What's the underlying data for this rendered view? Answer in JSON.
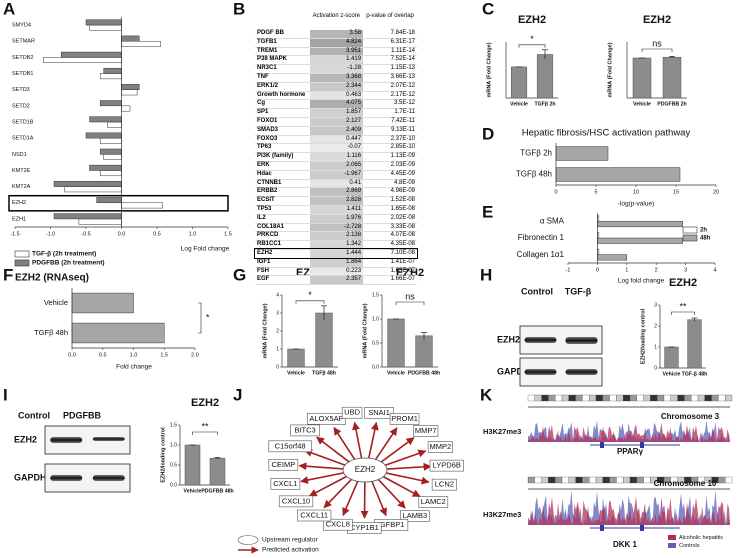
{
  "chart_data": [
    {
      "panel": "A",
      "type": "bar",
      "orientation": "horizontal",
      "categories": [
        "SMYD4",
        "SETMAR",
        "SETDB2",
        "SETDB1",
        "SETD3",
        "SETD2",
        "SETD1B",
        "SETD1A",
        "NSD1",
        "KMT2E",
        "KMT2A",
        "EZH2",
        "EZH1"
      ],
      "series": [
        {
          "name": "TGF-β (2h treatment)",
          "color": "#ffffff",
          "values": [
            -0.45,
            0.55,
            -1.1,
            -0.3,
            0.22,
            0.12,
            -0.2,
            -0.3,
            -0.25,
            -0.3,
            -0.8,
            0.58,
            -0.6
          ]
        },
        {
          "name": "PDGFBB (2h treatment)",
          "color": "#808080",
          "values": [
            -0.5,
            0.25,
            -0.85,
            -0.25,
            0.25,
            -0.3,
            -0.45,
            -0.5,
            -0.3,
            -0.45,
            -0.95,
            -0.35,
            -0.95
          ]
        }
      ],
      "xlim": [
        -1.5,
        1.5
      ],
      "xticks": [
        {
          "value": -1.5,
          "label": "-1.5"
        },
        {
          "value": -1,
          "label": "-1.0"
        },
        {
          "value": -0.5,
          "label": "-0.5"
        },
        {
          "value": 0,
          "label": "0.0"
        },
        {
          "value": 0.5,
          "label": "0.5"
        },
        {
          "value": 1,
          "label": "1.0"
        },
        {
          "value": 1.5,
          "label": "1.5"
        }
      ],
      "xlabel": "Log Fold change",
      "highlight": "EZH2"
    },
    {
      "panel": "C",
      "type": "bar",
      "title": "EZH2",
      "ylabel": "mRNA (Fold Change)",
      "categories": [
        "Vehicle",
        "TGFβ 2h"
      ],
      "values": [
        1.0,
        1.4
      ],
      "error": [
        0,
        0.15
      ],
      "color": "#8c8c8c",
      "ylim": [
        0,
        1.8
      ],
      "annotation": "*"
    },
    {
      "type": "bar",
      "title": "EZH2",
      "ylabel": "mRNA (Fold Change)",
      "categories": [
        "Vehicle",
        "PDGFBB 2h"
      ],
      "values": [
        1.0,
        1.02
      ],
      "error": [
        0,
        0.02
      ],
      "color": "#8c8c8c",
      "ylim": [
        0,
        1.4
      ],
      "annotation": "ns"
    },
    {
      "panel": "D",
      "type": "bar",
      "orientation": "horizontal",
      "title": "Hepatic fibrosis/HSC activation pathway",
      "categories": [
        "TGFβ 2h",
        "TGFβ 48h"
      ],
      "values": [
        6.5,
        15.5
      ],
      "color": "#a6a6a6",
      "xlim": [
        0,
        20
      ],
      "xticks": [
        0,
        5,
        10,
        15,
        20
      ],
      "xlabel": "-log(p-value)"
    },
    {
      "panel": "E",
      "type": "bar",
      "orientation": "horizontal",
      "categories": [
        "α SMA",
        "Fibronectin 1",
        "Collagen 1α1"
      ],
      "series": [
        {
          "name": "2h",
          "color": "#ffffff",
          "values": [
            0.05,
            0.05,
            0.05
          ]
        },
        {
          "name": "48h",
          "color": "#a6a6a6",
          "values": [
            2.9,
            2.9,
            1.0
          ]
        }
      ],
      "xlim": [
        -1,
        4
      ],
      "xticks": [
        -1,
        0,
        1,
        2,
        3,
        4
      ],
      "xlabel": "Log fold change"
    },
    {
      "panel": "F",
      "type": "bar",
      "orientation": "horizontal",
      "title": "EZH2 (RNAseq)",
      "categories": [
        "Vehicle",
        "TGFβ 48h"
      ],
      "values": [
        1.0,
        1.5
      ],
      "color": "#a6a6a6",
      "xlim": [
        0,
        2
      ],
      "xticks": [
        {
          "value": 0,
          "label": "0.0"
        },
        {
          "value": 0.5,
          "label": "0.5"
        },
        {
          "value": 1,
          "label": "1.0"
        },
        {
          "value": 1.5,
          "label": "1.5"
        },
        {
          "value": 2,
          "label": "2.0"
        }
      ],
      "xlabel": "Fold change",
      "annotation": "*"
    },
    {
      "panel": "G",
      "type": "bar",
      "title": "EZH2",
      "ylabel": "mRNA (Fold Change)",
      "categories": [
        "Vehicle",
        "TGFβ 48h"
      ],
      "values": [
        1.0,
        3.0
      ],
      "error": [
        0,
        0.4
      ],
      "color": "#8c8c8c",
      "ylim": [
        0,
        4
      ],
      "yticks": [
        0,
        1,
        2,
        3,
        4
      ],
      "annotation": "*"
    },
    {
      "type": "bar",
      "title": "EZH2",
      "ylabel": "mRNA (Fold Change)",
      "categories": [
        "Vehicle",
        "PDGFBB 48h"
      ],
      "values": [
        1.0,
        0.65
      ],
      "error": [
        0,
        0.07
      ],
      "color": "#8c8c8c",
      "ylim": [
        0,
        1.5
      ],
      "yticks": [
        {
          "value": 0,
          "label": "0.0"
        },
        {
          "value": 0.5,
          "label": "0.5"
        },
        {
          "value": 1,
          "label": "1.0"
        },
        {
          "value": 1.5,
          "label": "1.5"
        }
      ],
      "annotation": "ns"
    },
    {
      "type": "bar",
      "title": "EZH2",
      "ylabel": "EZH2/loading control",
      "categories": [
        "Vehicle",
        "TGF-β 48h"
      ],
      "values": [
        1.0,
        2.3
      ],
      "error": [
        0,
        0.08
      ],
      "color": "#8c8c8c",
      "ylim": [
        0,
        3
      ],
      "yticks": [
        0,
        1,
        2,
        3
      ],
      "annotation": "**"
    },
    {
      "type": "bar",
      "title": "EZH2",
      "ylabel": "EZH2/loading control",
      "categories": [
        "Vehicle",
        "PDGFBB 48h"
      ],
      "values": [
        1.0,
        0.67
      ],
      "error": [
        0,
        0.02
      ],
      "color": "#8c8c8c",
      "ylim": [
        0,
        1.5
      ],
      "yticks": [
        {
          "value": 0,
          "label": "0.0"
        },
        {
          "value": 0.5,
          "label": "0.5"
        },
        {
          "value": 1,
          "label": "1.0"
        },
        {
          "value": 1.5,
          "label": "1.5"
        }
      ],
      "annotation": "**"
    }
  ],
  "table": {
    "panel": "B",
    "columns": [
      "Activation z-score",
      "p-value of overlap"
    ],
    "highlight": "EZH2",
    "rows": [
      [
        "PDGF BB",
        "3.58",
        "7.84E-18"
      ],
      [
        "TGFB1",
        "4.824",
        "6.31E-17"
      ],
      [
        "TREM1",
        "3.951",
        "1.11E-14"
      ],
      [
        "P38 MAPK",
        "1.419",
        "7.52E-14"
      ],
      [
        "NR3C1",
        "-1.28",
        "1.15E-13"
      ],
      [
        "TNF",
        "3.368",
        "3.66E-13"
      ],
      [
        "ERK1/2",
        "2.344",
        "2.07E-12"
      ],
      [
        "Growth hormone",
        "0.463",
        "2.17E-12"
      ],
      [
        "Cg",
        "4.075",
        "3.5E-12"
      ],
      [
        "SP1",
        "1.857",
        "1.7E-11"
      ],
      [
        "FOXO1",
        "2.127",
        "7.42E-11"
      ],
      [
        "SMAD3",
        "2.409",
        "9.13E-11"
      ],
      [
        "FOXO3",
        "0.447",
        "2.37E-10"
      ],
      [
        "TP63",
        "-0.07",
        "2.85E-10"
      ],
      [
        "PI3K (family)",
        "1.116",
        "1.13E-09"
      ],
      [
        "ERK",
        "2.065",
        "2.03E-09"
      ],
      [
        "Hdac",
        "-1.967",
        "4.45E-09"
      ],
      [
        "CTNNB1",
        "0.41",
        "4.8E-09"
      ],
      [
        "ERBB2",
        "2.869",
        "4.96E-09"
      ],
      [
        "ECSIT",
        "2.828",
        "1.52E-08"
      ],
      [
        "TP53",
        "1.411",
        "1.65E-08"
      ],
      [
        "IL2",
        "1.976",
        "2.02E-08"
      ],
      [
        "COL18A1",
        "-2.728",
        "3.33E-08"
      ],
      [
        "PRKCD",
        "2.138",
        "4.07E-08"
      ],
      [
        "RB1CC1",
        "1.342",
        "4.35E-08"
      ],
      [
        "EZH2",
        "1.444",
        "7.10E-08"
      ],
      [
        "IGF1",
        "1.864",
        "1.41E-07"
      ],
      [
        "FSH",
        "0.223",
        "1.63E-07"
      ],
      [
        "EGF",
        "2.357",
        "1.66E-07"
      ]
    ]
  },
  "blots": [
    {
      "panel": "H",
      "lanes": [
        "Control",
        "TGF-β"
      ],
      "rows": [
        "EZH2",
        "GAPDH"
      ]
    },
    {
      "panel": "I",
      "lanes": [
        "Control",
        "PDGFBB"
      ],
      "rows": [
        "EZH2",
        "GAPDH"
      ]
    }
  ],
  "network": {
    "panel": "J",
    "center": "EZH2",
    "targets": [
      "ALOX5AP",
      "UBD",
      "SNAI1",
      "PROM1",
      "MMP7",
      "MMP2",
      "LYPD6B",
      "LCN2",
      "LAMC2",
      "LAMB3",
      "IGFBP1",
      "CYP1B1",
      "CXCL8",
      "CXCL11",
      "CXCL10",
      "CXCL1",
      "CEIMP",
      "C15orf48",
      "BITC3"
    ],
    "legend": [
      "Upstream regulator",
      "Predicted activation"
    ]
  },
  "tracks": {
    "panel": "K",
    "loci": [
      {
        "chromosome": "Chromosome 3",
        "mark": "H3K27me3",
        "gene": "PPARγ"
      },
      {
        "chromosome": "Chromosome 10",
        "mark": "H3K27me3",
        "gene": "DKK 1"
      }
    ],
    "legend": [
      {
        "name": "Alcoholic hepatitis",
        "color": "#b0305a"
      },
      {
        "name": "Controls",
        "color": "#5b5fb5"
      }
    ]
  }
}
